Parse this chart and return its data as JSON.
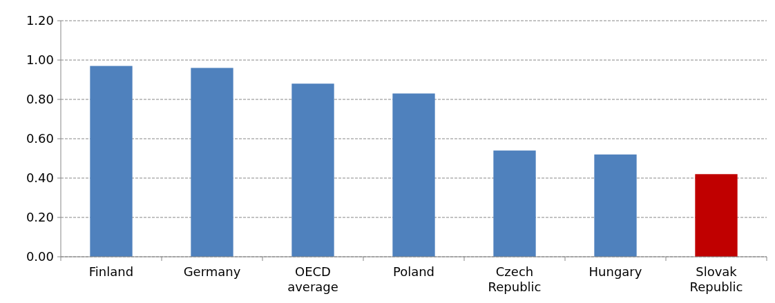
{
  "chart_data": {
    "type": "bar",
    "categories": [
      "Finland",
      "Germany",
      "OECD average",
      "Poland",
      "Czech Republic",
      "Hungary",
      "Slovak Republic"
    ],
    "values": [
      0.97,
      0.96,
      0.88,
      0.83,
      0.54,
      0.52,
      0.42
    ],
    "colors": [
      "#4f81bd",
      "#4f81bd",
      "#4f81bd",
      "#4f81bd",
      "#4f81bd",
      "#4f81bd",
      "#c00000"
    ],
    "ylim": [
      0,
      1.2
    ],
    "yticks": [
      {
        "value": 0,
        "label": "0.00"
      },
      {
        "value": 0.2,
        "label": "0.20"
      },
      {
        "value": 0.4,
        "label": "0.40"
      },
      {
        "value": 0.6,
        "label": "0.60"
      },
      {
        "value": 0.8,
        "label": "0.80"
      },
      {
        "value": 1,
        "label": "1.00"
      },
      {
        "value": 1.2,
        "label": "1.20"
      }
    ],
    "grid": "y"
  }
}
